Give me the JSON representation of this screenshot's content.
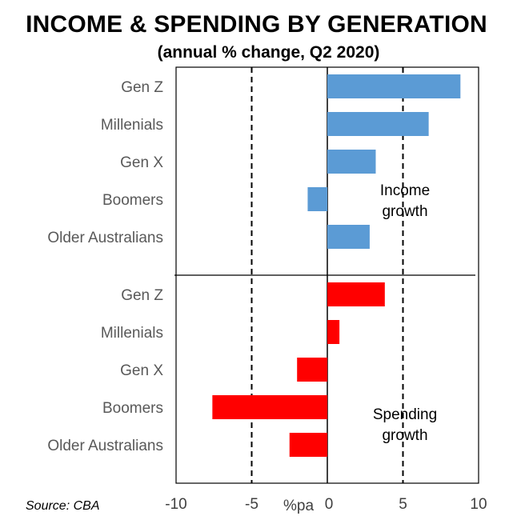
{
  "chart_data": {
    "type": "bar",
    "orientation": "horizontal",
    "title": "INCOME & SPENDING BY GENERATION",
    "subtitle": "(annual % change, Q2 2020)",
    "xlabel": "%pa",
    "xlim": [
      -10,
      10
    ],
    "xticks": [
      -10,
      -5,
      0,
      5,
      10
    ],
    "gridlines_dashed_at": [
      -5,
      5
    ],
    "source": "Source: CBA",
    "panels": [
      {
        "annotation": [
          "Income",
          "growth"
        ],
        "color": "#5b9bd5",
        "categories": [
          "Gen Z",
          "Millenials",
          "Gen X",
          "Boomers",
          "Older Australians"
        ],
        "values": [
          8.8,
          6.7,
          3.2,
          -1.3,
          2.8
        ]
      },
      {
        "annotation": [
          "Spending",
          "growth"
        ],
        "color": "#ff0000",
        "categories": [
          "Gen Z",
          "Millenials",
          "Gen X",
          "Boomers",
          "Older Australians"
        ],
        "values": [
          3.8,
          0.8,
          -2.0,
          -7.6,
          -2.5
        ]
      }
    ]
  }
}
